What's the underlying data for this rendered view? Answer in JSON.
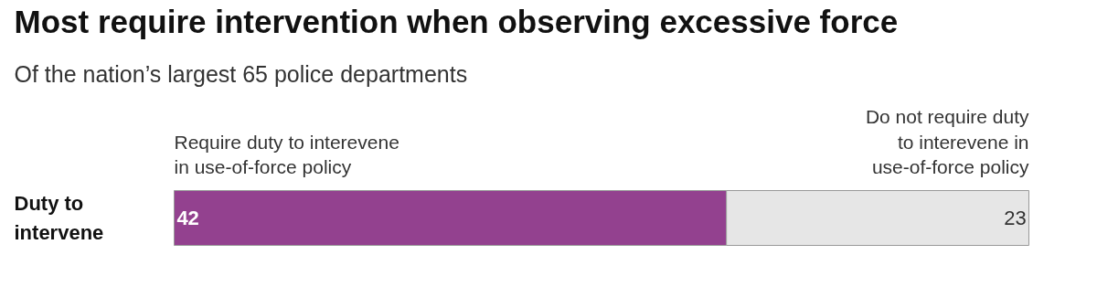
{
  "chart_data": {
    "type": "bar",
    "orientation": "horizontal",
    "stacked": true,
    "title": "Most require intervention when observing excessive force",
    "subtitle": "Of the nation’s largest 65 police departments",
    "categories": [
      "Duty to\nintervene"
    ],
    "data_labels": true,
    "series": [
      {
        "name": "Require duty to interevene\nin use-of-force policy",
        "color": "#93418f",
        "values": [
          42
        ]
      },
      {
        "name": "Do not require duty\nto interevene in\nuse-of-force policy",
        "color": "#e6e6e6",
        "values": [
          23
        ]
      }
    ]
  }
}
